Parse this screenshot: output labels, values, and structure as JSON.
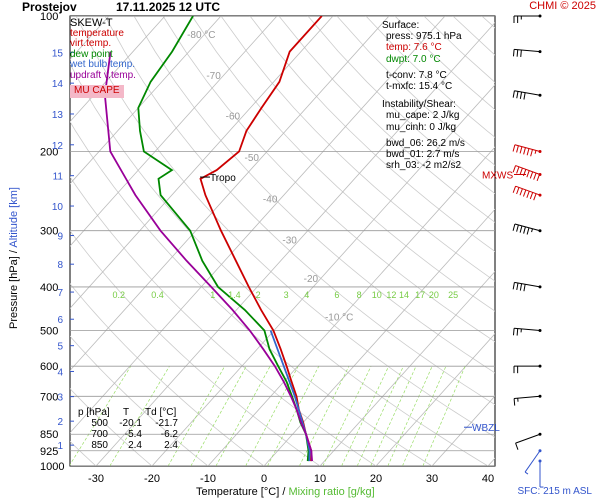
{
  "header": {
    "station": "Prostejov",
    "datetime": "17.11.2025 12 UTC",
    "copyright": "CHMI © 2025"
  },
  "legend": {
    "title": "SKEW-T",
    "items": [
      {
        "label": "temperature",
        "color": "#cc0000"
      },
      {
        "label": "virt.temp.",
        "color": "#cc0000"
      },
      {
        "label": "dew point",
        "color": "#008800"
      },
      {
        "label": "wet bulb temp.",
        "color": "#3366cc"
      },
      {
        "label": "updraft v.temp.",
        "color": "#990099"
      }
    ],
    "mu_cape_label": "MU CAPE"
  },
  "surface": {
    "title": "Surface:",
    "press": "press: 975.1 hPa",
    "temp": "temp: 7.6 °C",
    "dwpt": "dwpt: 7.0 °C",
    "tconv": "t-conv: 7.8 °C",
    "tmxfc": "t-mxfc: 15.4 °C"
  },
  "instability": {
    "title": "Instability/Shear:",
    "mu_cape": "mu_cape: 2 J/kg",
    "mu_cinh": "mu_cinh: 0 J/kg",
    "bwd_06": "bwd_06: 26.2 m/s",
    "bwd_01": "bwd_01: 2.7 m/s",
    "srh_03": "srh_03: -2 m2/s2"
  },
  "table": {
    "headers": [
      "p [hPa]",
      "T",
      "Td [°C]"
    ],
    "rows": [
      [
        "500",
        "-20.1",
        "-21.7"
      ],
      [
        "700",
        "-5.4",
        "-6.2"
      ],
      [
        "850",
        "2.4",
        "2.4"
      ]
    ]
  },
  "annotations": {
    "tropo": "Tropo",
    "mxws": "MXWS",
    "wbzl": "WBZL",
    "sfc": "SFC: 215 m ASL"
  },
  "colors": {
    "temperature": "#cc0000",
    "dewpoint": "#008800",
    "wetbulb": "#3366cc",
    "parcel": "#990099",
    "isobar": "#999999",
    "isotherm": "#bbbbbb",
    "dry_adiabat": "#cccccc",
    "mixing_ratio": "#99dd66",
    "axis_blue": "#3355cc",
    "header_red": "#cc0000"
  },
  "chart_data": {
    "type": "line",
    "title": "SKEW-T",
    "xlabel": "Temperature [°C]",
    "xlabel2": "Mixing ratio [g/kg]",
    "xlabel_sep": "/",
    "ylabel": "Pressure [hPa]",
    "ylabel2": "Altitude [km]",
    "ylabel_sep": "/",
    "ylim": [
      1000,
      100
    ],
    "xlim": [
      -40,
      40
    ],
    "pressure_ticks": [
      1000,
      925,
      850,
      700,
      600,
      500,
      400,
      300,
      200,
      100
    ],
    "pressure_tick_labels": [
      "1000",
      "925",
      "850",
      "700",
      "600",
      "500",
      "400",
      "300",
      "200",
      "100"
    ],
    "temp_ticks": [
      -30,
      -20,
      -10,
      0,
      10,
      20,
      30,
      40
    ],
    "temp_tick_labels": [
      "-30",
      "-20",
      "-10",
      "0",
      "10",
      "20",
      "30",
      "40"
    ],
    "skewed_temp_labels": [
      "-80 °C",
      "-70",
      "-60",
      "-50",
      "-40",
      "-30",
      "-20",
      "-10 °C"
    ],
    "altitude_ticks": [
      1,
      2,
      3,
      4,
      5,
      6,
      7,
      8,
      9,
      10,
      11,
      12,
      13,
      14,
      15
    ],
    "altitude_labels": [
      "1",
      "2",
      "3",
      "4",
      "5",
      "6",
      "7",
      "8",
      "9",
      "10",
      "11",
      "12",
      "13",
      "14",
      "15"
    ],
    "mixing_ratio_labels": [
      "0.2",
      "0.4",
      "1",
      "1.4",
      "2",
      "3",
      "4",
      "6",
      "8",
      "10",
      "12",
      "14",
      "17",
      "20",
      "25"
    ],
    "mixing_ratio_values": [
      0.2,
      0.4,
      1,
      1.4,
      2,
      3,
      4,
      6,
      8,
      10,
      12,
      14,
      17,
      20,
      25
    ],
    "series": [
      {
        "name": "temperature",
        "pressure": [
          975,
          925,
          850,
          800,
          750,
          700,
          650,
          600,
          550,
          500,
          450,
          400,
          350,
          300,
          250,
          230,
          220,
          200,
          180,
          160,
          140,
          120,
          100
        ],
        "values": [
          7.6,
          6.0,
          2.4,
          0.0,
          -2.8,
          -5.4,
          -8.6,
          -12.0,
          -15.8,
          -20.1,
          -25.6,
          -31.5,
          -38.0,
          -45.5,
          -54.0,
          -57.5,
          -56.0,
          -55.0,
          -57.0,
          -58.0,
          -59.0,
          -62.0,
          -62.0
        ]
      },
      {
        "name": "dew point",
        "pressure": [
          975,
          925,
          850,
          800,
          750,
          700,
          650,
          600,
          550,
          500,
          450,
          400,
          350,
          300,
          250,
          230,
          220,
          200,
          180,
          160,
          140,
          120,
          100
        ],
        "values": [
          7.0,
          5.5,
          2.4,
          -0.5,
          -3.2,
          -6.2,
          -9.5,
          -13.5,
          -17.8,
          -21.7,
          -28.5,
          -37.0,
          -44.0,
          -51.0,
          -62.0,
          -65.0,
          -64.0,
          -72.0,
          -76.0,
          -80.0,
          -82.0,
          -83.0,
          -85.0
        ]
      },
      {
        "name": "wet bulb temp.",
        "pressure": [
          975,
          925,
          850,
          700,
          600,
          500
        ],
        "values": [
          7.3,
          5.7,
          2.4,
          -5.7,
          -12.5,
          -20.6
        ]
      },
      {
        "name": "updraft v.temp.",
        "pressure": [
          975,
          925,
          850,
          800,
          750,
          700,
          650,
          600,
          550,
          500,
          450,
          400,
          350,
          300,
          250,
          200,
          150,
          120
        ],
        "values": [
          7.8,
          6.0,
          2.4,
          -0.4,
          -3.2,
          -6.4,
          -10.0,
          -14.1,
          -18.9,
          -24.3,
          -30.7,
          -38.2,
          -46.8,
          -56.3,
          -66.5,
          -78.0,
          -88.0,
          -94.0
        ]
      }
    ],
    "wind_barbs": {
      "pressure": [
        975,
        925,
        850,
        700,
        600,
        500,
        400,
        300,
        250,
        225,
        200,
        150,
        120,
        100
      ],
      "direction_deg": [
        180,
        215,
        250,
        265,
        270,
        275,
        280,
        285,
        290,
        290,
        285,
        280,
        275,
        270
      ],
      "speed_ms": [
        3,
        4,
        7,
        10,
        12,
        15,
        22,
        30,
        38,
        42,
        35,
        22,
        18,
        15
      ]
    }
  }
}
